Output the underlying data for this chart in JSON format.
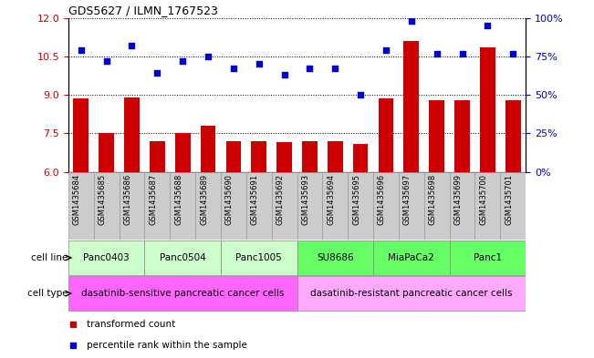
{
  "title": "GDS5627 / ILMN_1767523",
  "samples": [
    "GSM1435684",
    "GSM1435685",
    "GSM1435686",
    "GSM1435687",
    "GSM1435688",
    "GSM1435689",
    "GSM1435690",
    "GSM1435691",
    "GSM1435692",
    "GSM1435693",
    "GSM1435694",
    "GSM1435695",
    "GSM1435696",
    "GSM1435697",
    "GSM1435698",
    "GSM1435699",
    "GSM1435700",
    "GSM1435701"
  ],
  "bar_values": [
    8.85,
    7.5,
    8.9,
    7.2,
    7.5,
    7.8,
    7.2,
    7.2,
    7.15,
    7.2,
    7.2,
    7.1,
    8.85,
    11.1,
    8.8,
    8.8,
    10.85,
    8.8
  ],
  "dot_right_values": [
    79,
    72,
    82,
    64,
    72,
    75,
    67,
    70,
    63,
    67,
    67,
    50,
    79,
    98,
    77,
    77,
    95,
    77
  ],
  "ylim_left": [
    6,
    12
  ],
  "ylim_right": [
    0,
    100
  ],
  "yticks_left": [
    6,
    7.5,
    9,
    10.5,
    12
  ],
  "yticks_right": [
    0,
    25,
    50,
    75,
    100
  ],
  "bar_color": "#cc0000",
  "dot_color": "#0000cc",
  "cell_lines": [
    {
      "label": "Panc0403",
      "start": 0,
      "end": 2,
      "color": "#ccffcc"
    },
    {
      "label": "Panc0504",
      "start": 3,
      "end": 5,
      "color": "#ccffcc"
    },
    {
      "label": "Panc1005",
      "start": 6,
      "end": 8,
      "color": "#ccffcc"
    },
    {
      "label": "SU8686",
      "start": 9,
      "end": 11,
      "color": "#66ff66"
    },
    {
      "label": "MiaPaCa2",
      "start": 12,
      "end": 14,
      "color": "#66ff66"
    },
    {
      "label": "Panc1",
      "start": 15,
      "end": 17,
      "color": "#66ff66"
    }
  ],
  "cell_types": [
    {
      "label": "dasatinib-sensitive pancreatic cancer cells",
      "start": 0,
      "end": 8,
      "color": "#ff66ff"
    },
    {
      "label": "dasatinib-resistant pancreatic cancer cells",
      "start": 9,
      "end": 17,
      "color": "#ffaaff"
    }
  ],
  "legend_items": [
    {
      "label": "transformed count",
      "color": "#cc0000"
    },
    {
      "label": "percentile rank within the sample",
      "color": "#0000cc"
    }
  ],
  "sample_bg_color": "#cccccc",
  "sample_border_color": "#999999"
}
